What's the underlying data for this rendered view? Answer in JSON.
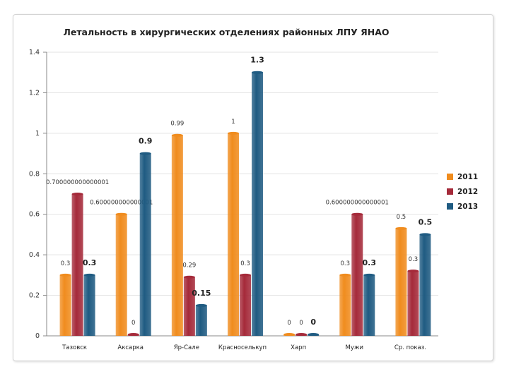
{
  "chart_data": {
    "type": "bar",
    "title": "Летальность  в хирургических отделениях районных ЛПУ ЯНАО",
    "xlabel": "",
    "ylabel": "",
    "ylim": [
      0,
      1.4
    ],
    "yticks": [
      "0",
      "0.2",
      "0.4",
      "0.6",
      "0.8",
      "1",
      "1.2",
      "1.4"
    ],
    "grid": true,
    "legend_position": "right",
    "categories": [
      "Тазовск",
      "Аксарка",
      "Яр-Сале",
      "Красноселькуп",
      "Харп",
      "Мужи",
      "Ср. показ."
    ],
    "series": [
      {
        "name": "2011",
        "color": "#f08c1e",
        "values": [
          0.3,
          0.6,
          0.99,
          1,
          0,
          0.3,
          0.53
        ],
        "labels": [
          "0.3",
          "0.600000000000001",
          "0.99",
          "1",
          "0",
          "0.3",
          "0.5"
        ]
      },
      {
        "name": "2012",
        "color": "#a52a3a",
        "values": [
          0.7,
          0,
          0.29,
          0.3,
          0,
          0.6,
          0.32
        ],
        "labels": [
          "0.700000000000001",
          "0",
          "0.29",
          "0.3",
          "0",
          "0.600000000000001",
          "0.3"
        ]
      },
      {
        "name": "2013",
        "color": "#1f5b82",
        "values": [
          0.3,
          0.9,
          0.15,
          1.3,
          0,
          0.3,
          0.5
        ],
        "labels": [
          "0.3",
          "0.9",
          "0.15",
          "1.3",
          "0",
          "0.3",
          "0.5"
        ]
      }
    ]
  }
}
